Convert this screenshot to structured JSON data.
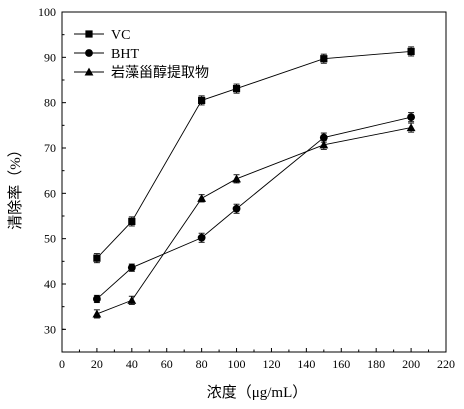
{
  "chart_data": {
    "type": "line",
    "xlabel": "浓度（μg/mL）",
    "ylabel": "清除率（%）",
    "xlim": [
      0,
      220
    ],
    "ylim": [
      25,
      100
    ],
    "x_ticks": [
      0,
      20,
      40,
      60,
      80,
      100,
      120,
      140,
      160,
      180,
      200,
      220
    ],
    "y_ticks": [
      30,
      40,
      50,
      60,
      70,
      80,
      90,
      100
    ],
    "legend_position": "top-left",
    "grid": false,
    "x": [
      20,
      40,
      80,
      100,
      150,
      200
    ],
    "series": [
      {
        "name": "VC",
        "marker": "square",
        "values": [
          45.7,
          53.8,
          80.5,
          83.1,
          89.7,
          91.3
        ],
        "errors": [
          1.0,
          1.0,
          1.0,
          1.0,
          1.0,
          1.0
        ]
      },
      {
        "name": "BHT",
        "marker": "circle",
        "values": [
          36.7,
          43.6,
          50.2,
          56.6,
          72.3,
          76.8
        ],
        "errors": [
          0.8,
          0.8,
          1.0,
          1.0,
          1.0,
          1.0
        ]
      },
      {
        "name": "岩藻甾醇提取物",
        "marker": "triangle",
        "values": [
          33.4,
          36.4,
          58.9,
          63.2,
          70.7,
          74.5
        ],
        "errors": [
          0.9,
          0.9,
          0.8,
          0.9,
          1.0,
          1.0
        ]
      }
    ]
  }
}
